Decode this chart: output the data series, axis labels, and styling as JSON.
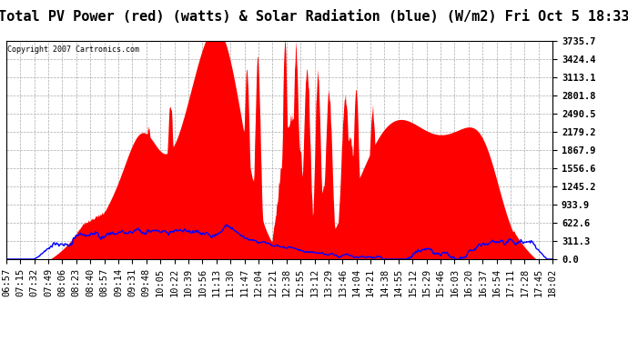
{
  "title": "Total PV Power (red) (watts) & Solar Radiation (blue) (W/m2) Fri Oct 5 18:33",
  "ylabel_right_vals": [
    0.0,
    311.3,
    622.6,
    933.9,
    1245.2,
    1556.6,
    1867.9,
    2179.2,
    2490.5,
    2801.8,
    3113.1,
    3424.4,
    3735.7
  ],
  "ymax": 3735.7,
  "copyright_text": "Copyright 2007 Cartronics.com",
  "bg_color": "#ffffff",
  "plot_bg_color": "#ffffff",
  "grid_color": "#aaaaaa",
  "red_color": "#ff0000",
  "blue_color": "#0000ff",
  "title_fontsize": 11,
  "tick_fontsize": 7.5,
  "x_tick_labels": [
    "06:57",
    "07:15",
    "07:32",
    "07:49",
    "08:06",
    "08:23",
    "08:40",
    "08:57",
    "09:14",
    "09:31",
    "09:48",
    "10:05",
    "10:22",
    "10:39",
    "10:56",
    "11:13",
    "11:30",
    "11:47",
    "12:04",
    "12:21",
    "12:38",
    "12:55",
    "13:12",
    "13:29",
    "13:46",
    "14:04",
    "14:21",
    "14:38",
    "14:55",
    "15:12",
    "15:29",
    "15:46",
    "16:03",
    "16:20",
    "16:37",
    "16:54",
    "17:11",
    "17:28",
    "17:45",
    "18:02"
  ]
}
